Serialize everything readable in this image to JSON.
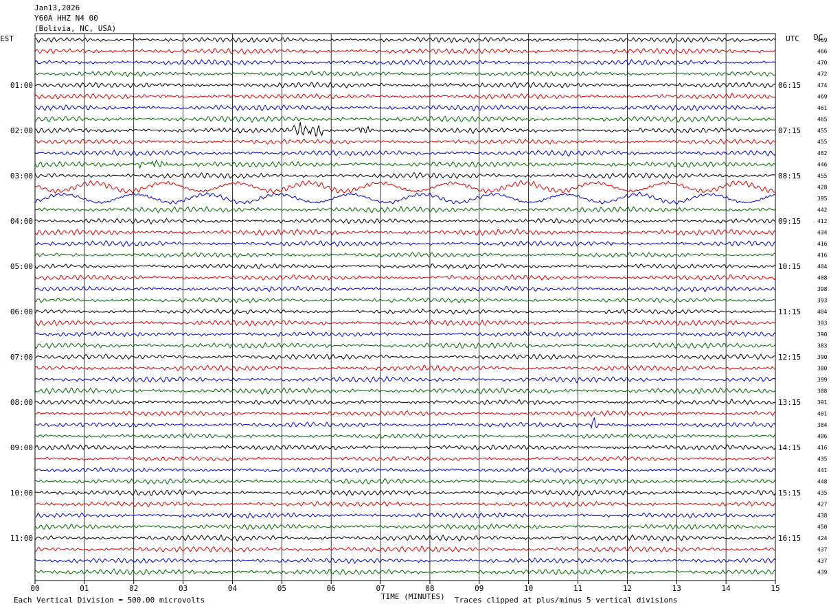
{
  "header": {
    "date": "Jan13,2026",
    "station": "Y60A HHZ N4 00",
    "location": "(Bolivia, NC, USA)"
  },
  "left_timezone": "EST",
  "right_timezone": "UTC",
  "dc_header": "DC",
  "footer": {
    "xlabel": "TIME (MINUTES)",
    "scale_note": "Each Vertical Division =  500.00 microvolts",
    "clip_note": "Traces clipped at plus/minus 5 vertical divisions"
  },
  "colors": {
    "trace_cycle": [
      "#000000",
      "#dd0000",
      "#0000cc",
      "#006600"
    ],
    "grid": "#000000"
  },
  "chart_data": {
    "type": "line",
    "title": "",
    "xlabel": "TIME (MINUTES)",
    "ylabel": "",
    "xlim": [
      0,
      15
    ],
    "x_ticks": [
      "00",
      "01",
      "02",
      "03",
      "04",
      "05",
      "06",
      "07",
      "08",
      "09",
      "10",
      "11",
      "12",
      "13",
      "14",
      "15"
    ],
    "rows": 48,
    "row_minutes": 15,
    "left_hour_labels": [
      "01:00",
      "02:00",
      "03:00",
      "04:00",
      "05:00",
      "06:00",
      "07:00",
      "08:00",
      "09:00",
      "10:00",
      "11:00"
    ],
    "right_hour_labels": [
      "06:15",
      "07:15",
      "08:15",
      "09:15",
      "10:15",
      "11:15",
      "12:15",
      "13:15",
      "14:15",
      "15:15",
      "16:15"
    ],
    "dc_offsets": [
      469,
      466,
      470,
      472,
      474,
      469,
      461,
      465,
      455,
      455,
      462,
      446,
      455,
      428,
      395,
      442,
      412,
      434,
      416,
      416,
      404,
      408,
      398,
      393,
      404,
      393,
      390,
      383,
      390,
      380,
      399,
      388,
      391,
      401,
      384,
      406,
      416,
      435,
      441,
      448,
      435,
      427,
      438,
      450,
      424,
      437,
      437,
      439
    ],
    "grid": true
  }
}
